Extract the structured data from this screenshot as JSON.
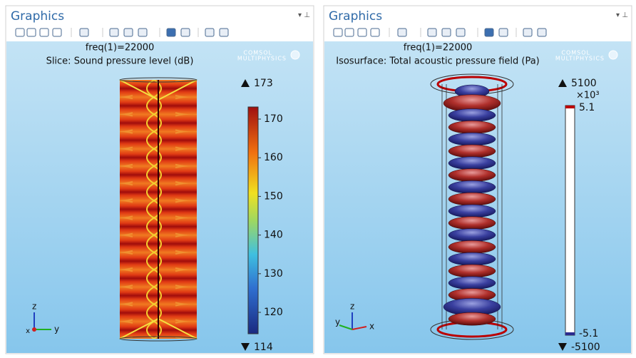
{
  "panels": [
    {
      "title": "Graphics",
      "freq": "freq(1)=22000",
      "plot_title": "Slice: Sound pressure level (dB)",
      "logo": [
        "COMSOL",
        "MULTIPHYSICS"
      ],
      "colorbar": {
        "max_label": "173",
        "ticks": [
          "170",
          "160",
          "150",
          "140",
          "130",
          "120"
        ],
        "min_label": "114"
      },
      "axes": {
        "z": "z",
        "y": "y",
        "x": "x"
      }
    },
    {
      "title": "Graphics",
      "freq": "freq(1)=22000",
      "plot_title": "Isosurface: Total acoustic pressure field (Pa)",
      "logo": [
        "COMSOL",
        "MULTIPHYSICS"
      ],
      "colorbar": {
        "max_label": "5100",
        "multiplier": "×10³",
        "top_label": "5.1",
        "bottom_label": "-5.1",
        "min_label": "-5100"
      },
      "axes": {
        "z": "z",
        "y": "y",
        "x": "x"
      }
    }
  ]
}
